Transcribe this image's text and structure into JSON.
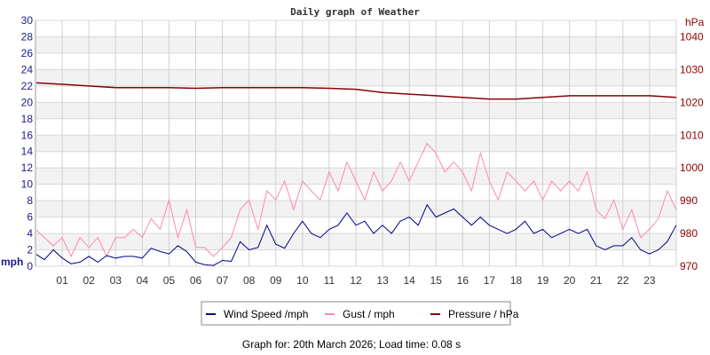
{
  "chart_data": {
    "type": "line",
    "title": "Daily graph of Weather",
    "xlabel": "",
    "ylabel_left": "mph",
    "ylabel_right": "hPa",
    "ylim_left": [
      0,
      30
    ],
    "ylim_right": [
      970,
      1045
    ],
    "yticks_left": [
      0,
      2,
      4,
      6,
      8,
      10,
      12,
      14,
      16,
      18,
      20,
      22,
      24,
      26,
      28,
      30
    ],
    "yticks_right": [
      970,
      980,
      990,
      1000,
      1010,
      1020,
      1030,
      1040
    ],
    "xlim_hours": [
      0,
      24
    ],
    "xticks": [
      "01",
      "02",
      "03",
      "04",
      "05",
      "06",
      "07",
      "08",
      "09",
      "10",
      "11",
      "12",
      "13",
      "14",
      "15",
      "16",
      "17",
      "18",
      "19",
      "20",
      "21",
      "22",
      "23"
    ],
    "grid": true,
    "legend_position": "bottom-center",
    "series": [
      {
        "name": "Wind Speed /mph",
        "color": "#00008b",
        "axis": "left",
        "step_hours": 0.3333,
        "values": [
          1.5,
          0.8,
          2.0,
          1.0,
          0.3,
          0.5,
          1.2,
          0.5,
          1.3,
          1.0,
          1.2,
          1.2,
          1.0,
          2.2,
          1.8,
          1.5,
          2.5,
          1.8,
          0.5,
          0.2,
          0.1,
          0.7,
          0.6,
          3.0,
          2.0,
          2.3,
          5.0,
          2.7,
          2.2,
          4.0,
          5.5,
          4.0,
          3.5,
          4.5,
          5.0,
          6.5,
          5.0,
          5.5,
          4.0,
          5.0,
          4.0,
          5.5,
          6.0,
          5.0,
          7.5,
          6.0,
          6.5,
          7.0,
          6.0,
          5.0,
          6.0,
          5.0,
          4.5,
          4.0,
          4.5,
          5.5,
          4.0,
          4.5,
          3.5,
          4.0,
          4.5,
          4.0,
          4.5,
          2.5,
          2.0,
          2.5,
          2.5,
          3.5,
          2.0,
          1.5,
          2.0,
          3.0,
          5.0
        ]
      },
      {
        "name": "Gust / mph",
        "color": "#ff88aa",
        "axis": "left",
        "step_hours": 0.3333,
        "values": [
          4.5,
          3.5,
          2.5,
          3.5,
          1.2,
          3.5,
          2.3,
          3.5,
          1.2,
          3.5,
          3.5,
          4.5,
          3.5,
          5.8,
          4.5,
          8.1,
          3.5,
          6.9,
          2.3,
          2.3,
          1.2,
          2.3,
          3.5,
          6.9,
          8.1,
          4.5,
          9.2,
          8.1,
          10.4,
          6.9,
          10.4,
          9.2,
          8.1,
          11.5,
          9.2,
          12.7,
          10.4,
          8.1,
          11.5,
          9.2,
          10.4,
          12.7,
          10.4,
          12.7,
          15.0,
          13.8,
          11.5,
          12.7,
          11.5,
          9.2,
          13.8,
          10.4,
          8.1,
          11.5,
          10.4,
          9.2,
          10.4,
          8.1,
          10.4,
          9.2,
          10.4,
          9.2,
          11.5,
          6.9,
          5.8,
          8.1,
          4.5,
          6.9,
          3.5,
          4.5,
          5.8,
          9.2,
          6.9
        ]
      },
      {
        "name": "Pressure / hPa",
        "color": "#8b0000",
        "axis": "right",
        "step_hours": 1,
        "values": [
          1026,
          1025.5,
          1025,
          1024.5,
          1024.5,
          1024.5,
          1024.3,
          1024.5,
          1024.5,
          1024.5,
          1024.5,
          1024.3,
          1024,
          1023,
          1022.5,
          1022,
          1021.5,
          1021,
          1021,
          1021.5,
          1022,
          1022,
          1022,
          1022,
          1021.5
        ]
      }
    ]
  },
  "footer": "Graph for: 20th March 2026; Load time: 0.08 s"
}
